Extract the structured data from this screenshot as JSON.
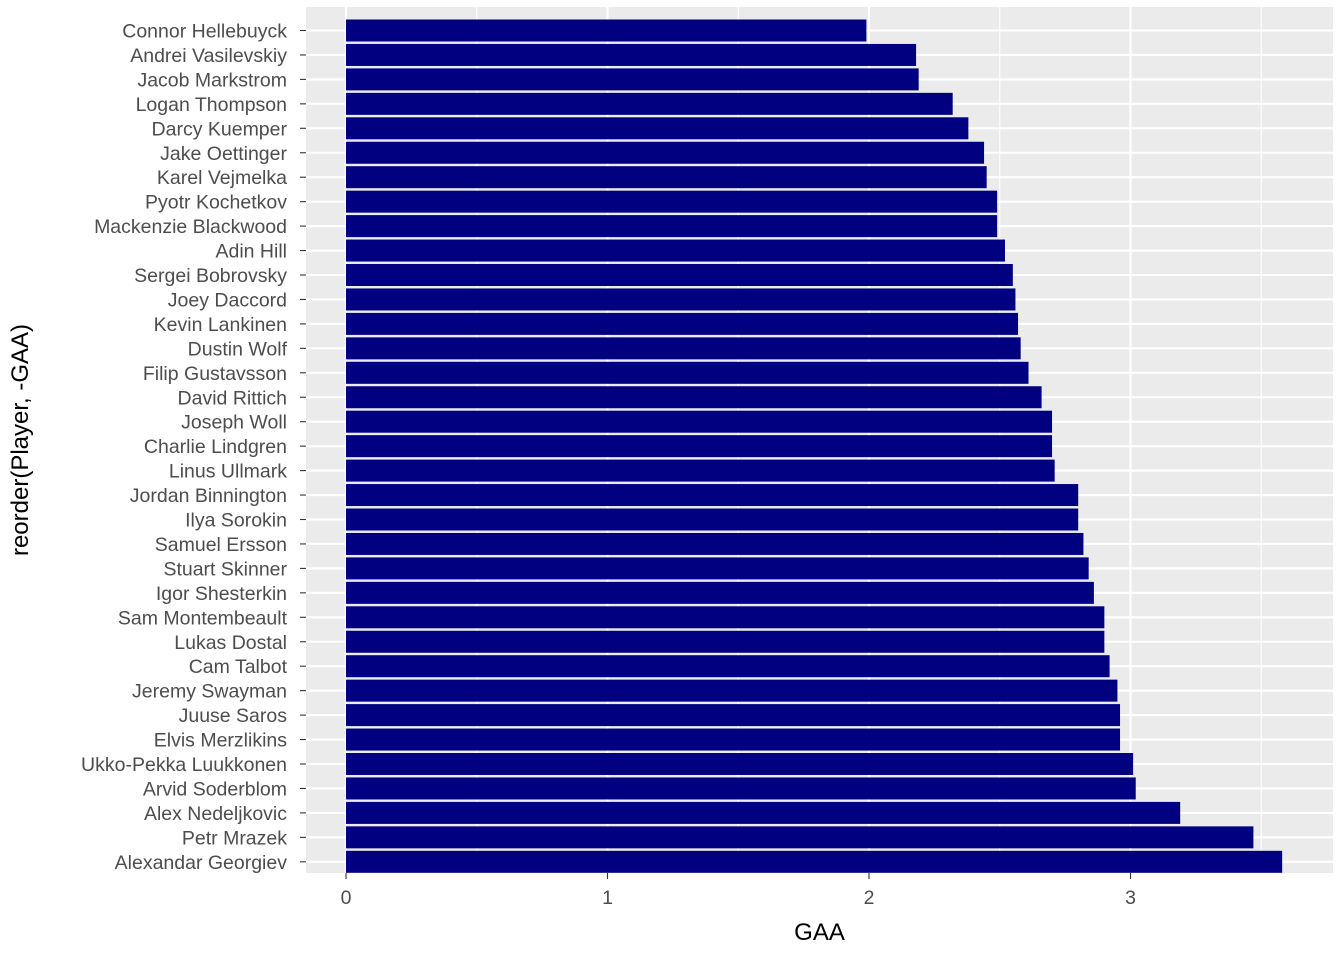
{
  "chart_data": {
    "type": "bar",
    "orientation": "horizontal",
    "xlabel": "GAA",
    "ylabel": "reorder(Player, -GAA)",
    "xlim": [
      0,
      3.7
    ],
    "x_ticks": [
      "0",
      "1",
      "2",
      "3"
    ],
    "grid": true,
    "bar_color": "#000080",
    "panel_background": "#ebebeb",
    "gridline_color": "#ffffff",
    "categories": [
      "Connor Hellebuyck",
      "Andrei Vasilevskiy",
      "Jacob Markstrom",
      "Logan Thompson",
      "Darcy Kuemper",
      "Jake Oettinger",
      "Karel Vejmelka",
      "Pyotr Kochetkov",
      "Mackenzie Blackwood",
      "Adin Hill",
      "Sergei Bobrovsky",
      "Joey Daccord",
      "Kevin Lankinen",
      "Dustin Wolf",
      "Filip Gustavsson",
      "David Rittich",
      "Joseph Woll",
      "Charlie Lindgren",
      "Linus Ullmark",
      "Jordan Binnington",
      "Ilya Sorokin",
      "Samuel Ersson",
      "Stuart Skinner",
      "Igor Shesterkin",
      "Sam Montembeault",
      "Lukas Dostal",
      "Cam Talbot",
      "Jeremy Swayman",
      "Juuse Saros",
      "Elvis Merzlikins",
      "Ukko-Pekka Luukkonen",
      "Arvid Soderblom",
      "Alex Nedeljkovic",
      "Petr Mrazek",
      "Alexandar Georgiev"
    ],
    "values": [
      1.99,
      2.18,
      2.19,
      2.32,
      2.38,
      2.44,
      2.45,
      2.49,
      2.49,
      2.52,
      2.55,
      2.56,
      2.57,
      2.58,
      2.61,
      2.66,
      2.7,
      2.7,
      2.71,
      2.8,
      2.8,
      2.82,
      2.84,
      2.86,
      2.9,
      2.9,
      2.92,
      2.95,
      2.96,
      2.96,
      3.01,
      3.02,
      3.19,
      3.47,
      3.58
    ]
  }
}
